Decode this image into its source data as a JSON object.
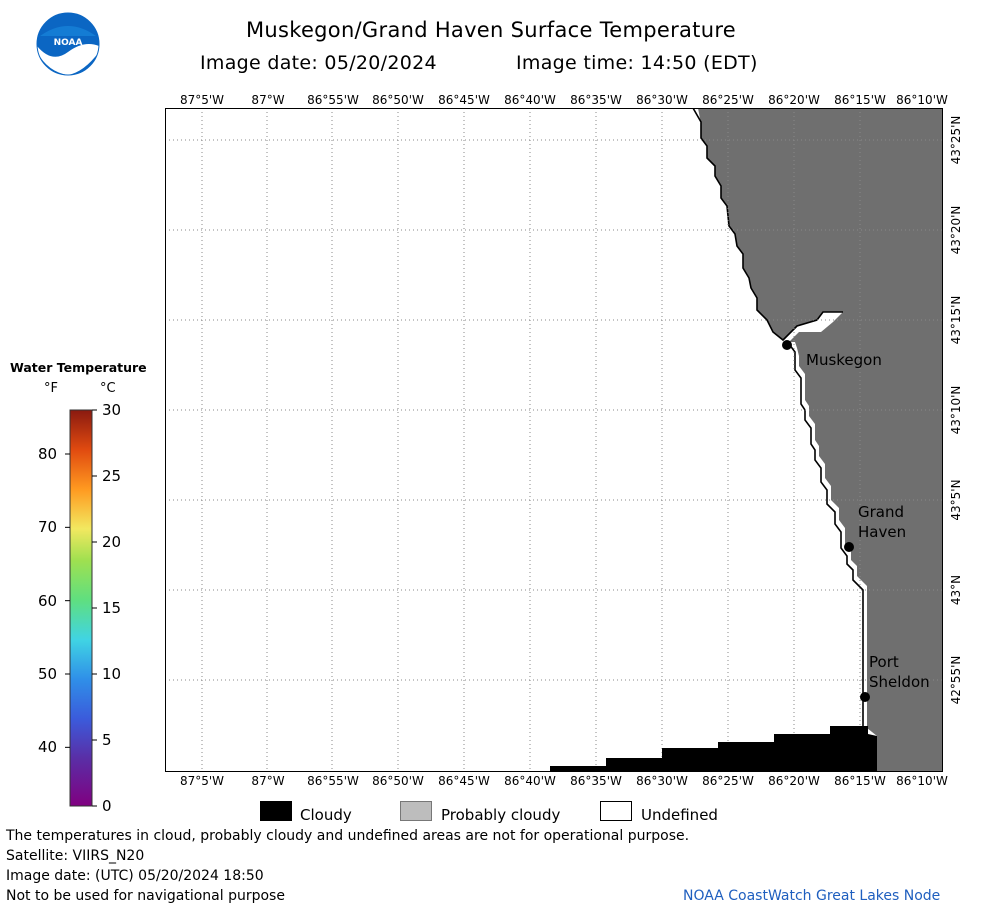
{
  "header": {
    "title": "Muskegon/Grand Haven Surface Temperature",
    "image_date": "Image date: 05/20/2024",
    "image_time": "Image time: 14:50 (EDT)",
    "logo_text": "NOAA"
  },
  "map": {
    "lon_labels": [
      "87°5'W",
      "87°W",
      "86°55'W",
      "86°50'W",
      "86°45'W",
      "86°40'W",
      "86°35'W",
      "86°30'W",
      "86°25'W",
      "86°20'W",
      "86°15'W",
      "86°10'W"
    ],
    "lat_labels": [
      "43°25'N",
      "43°20'N",
      "43°15'N",
      "43°10'N",
      "43°5'N",
      "43°N",
      "42°55'N"
    ],
    "cities": {
      "muskegon": "Muskegon",
      "grand_haven_1": "Grand",
      "grand_haven_2": "Haven",
      "port_sheldon_1": "Port",
      "port_sheldon_2": "Sheldon"
    },
    "colors": {
      "land": "#6f6f6f",
      "water": "#ffffff",
      "cloud": "#000000",
      "grid": "#8a8a8a"
    }
  },
  "scale": {
    "title": "Water Temperature",
    "unit_f": "°F",
    "unit_c": "°C",
    "f_ticks": [
      "80",
      "70",
      "60",
      "50",
      "40"
    ],
    "c_ticks": [
      "30",
      "25",
      "20",
      "15",
      "10",
      "5",
      "0"
    ]
  },
  "legend": {
    "cloudy": "Cloudy",
    "probably_cloudy": "Probably cloudy",
    "undefined": "Undefined"
  },
  "footer": {
    "disclaimer": "The temperatures in cloud, probably cloudy and undefined areas are not for operational purpose.",
    "satellite": "Satellite: VIIRS_N20",
    "utc_date": "Image date: (UTC) 05/20/2024  18:50",
    "navigation": "Not to be used for navigational purpose",
    "credit": "NOAA CoastWatch Great Lakes Node"
  }
}
